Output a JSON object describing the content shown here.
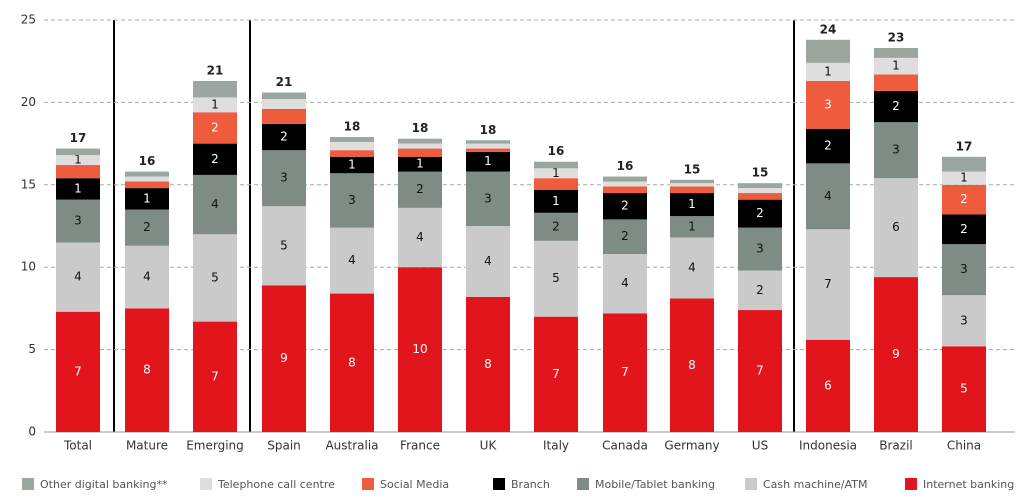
{
  "chart_data": {
    "type": "stacked_bar",
    "categories": [
      "Total",
      "Mature",
      "Emerging",
      "Spain",
      "Australia",
      "France",
      "UK",
      "Italy",
      "Canada",
      "Germany",
      "US",
      "Indonesia",
      "Brazil",
      "China"
    ],
    "series": [
      {
        "name": "Other digital banking**",
        "color": "#9ba69f",
        "values": [
          0.4,
          0.3,
          1.0,
          0.4,
          0.3,
          0.3,
          0.2,
          0.4,
          0.3,
          0.2,
          0.3,
          1.4,
          0.6,
          0.9
        ],
        "value_labels": [
          null,
          null,
          null,
          null,
          null,
          null,
          null,
          null,
          null,
          null,
          null,
          null,
          null,
          null
        ]
      },
      {
        "name": "Telephone call centre",
        "color": "#dedede",
        "values": [
          0.6,
          0.3,
          0.9,
          0.6,
          0.5,
          0.3,
          0.3,
          0.6,
          0.3,
          0.2,
          0.3,
          1.1,
          1.0,
          0.8
        ],
        "value_labels": [
          "1",
          null,
          "1",
          null,
          null,
          null,
          null,
          "1",
          null,
          null,
          null,
          "1",
          "1",
          "1"
        ]
      },
      {
        "name": "Social Media",
        "color": "#ee5b3d",
        "values": [
          0.8,
          0.4,
          1.9,
          0.9,
          0.4,
          0.5,
          0.2,
          0.7,
          0.4,
          0.4,
          0.4,
          2.9,
          1.0,
          1.8
        ],
        "value_labels": [
          null,
          null,
          "2",
          null,
          null,
          null,
          null,
          null,
          null,
          null,
          null,
          "3",
          null,
          "2"
        ]
      },
      {
        "name": "Branch",
        "color": "#000000",
        "values": [
          1.3,
          1.3,
          1.9,
          1.6,
          1.0,
          0.9,
          1.2,
          1.4,
          1.6,
          1.4,
          1.7,
          2.1,
          1.9,
          1.8
        ],
        "value_labels": [
          "1",
          "1",
          "2",
          "2",
          "1",
          "1",
          "1",
          "1",
          "2",
          "1",
          "2",
          "2",
          "2",
          "2"
        ]
      },
      {
        "name": "Mobile/Tablet banking",
        "color": "#7f8c85",
        "values": [
          2.6,
          2.2,
          3.6,
          3.4,
          3.3,
          2.2,
          3.3,
          1.7,
          2.1,
          1.3,
          2.6,
          4.0,
          3.4,
          3.1
        ],
        "value_labels": [
          "3",
          "2",
          "4",
          "3",
          "3",
          "2",
          "3",
          "2",
          "2",
          "1",
          "3",
          "4",
          "3",
          "3"
        ]
      },
      {
        "name": "Cash machine/ATM",
        "color": "#cacaca",
        "values": [
          4.2,
          3.8,
          5.3,
          4.8,
          4.0,
          3.6,
          4.3,
          4.6,
          3.6,
          3.7,
          2.4,
          6.7,
          6.0,
          3.1
        ],
        "value_labels": [
          "4",
          "4",
          "5",
          "5",
          "4",
          "4",
          "4",
          "5",
          "4",
          "4",
          "2",
          "7",
          "6",
          "3"
        ]
      },
      {
        "name": "Internet banking",
        "color": "#e3151c",
        "values": [
          7.3,
          7.5,
          6.7,
          8.9,
          8.4,
          10.0,
          8.2,
          7.0,
          7.2,
          8.1,
          7.4,
          5.6,
          9.4,
          5.2
        ],
        "value_labels": [
          "7",
          "8",
          "7",
          "9",
          "8",
          "10",
          "8",
          "7",
          "7",
          "8",
          "7",
          "6",
          "9",
          "5"
        ]
      }
    ],
    "totals": [
      "17",
      "16",
      "21",
      "21",
      "18",
      "18",
      "18",
      "16",
      "16",
      "15",
      "15",
      "24",
      "23",
      "17"
    ],
    "ylim": [
      0,
      25
    ],
    "yticks": [
      0,
      5,
      10,
      15,
      20,
      25
    ],
    "grid": true
  }
}
